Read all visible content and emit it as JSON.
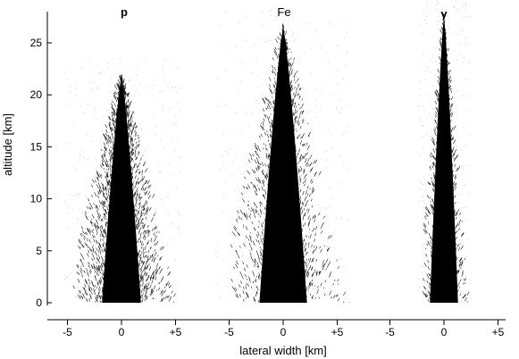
{
  "chart_data": {
    "type": "scatter",
    "title": "",
    "xlabel": "lateral width [km]",
    "ylabel": "altitude [km]",
    "ylim": [
      0,
      27.5
    ],
    "yticks": [
      0,
      5,
      10,
      15,
      20,
      25
    ],
    "xticks_per_panel": [
      {
        "value": -5,
        "label": "-5"
      },
      {
        "value": 0,
        "label": "0"
      },
      {
        "value": 5,
        "label": "+5"
      }
    ],
    "grid": false,
    "panels": [
      {
        "label": "p",
        "xlim": [
          -6.5,
          6.5
        ],
        "apex_altitude": 21.8,
        "half_width_at_ground": 4.5,
        "dense_core_half_width_at_ground": 1.8
      },
      {
        "label": "Fe",
        "xlim": [
          -6.5,
          6.5
        ],
        "apex_altitude": 26.5,
        "half_width_at_ground": 5.2,
        "dense_core_half_width_at_ground": 2.2
      },
      {
        "label": "γ",
        "xlim": [
          -6.5,
          6.5
        ],
        "apex_altitude": 27.5,
        "half_width_at_ground": 2.0,
        "dense_core_half_width_at_ground": 1.3
      }
    ]
  }
}
